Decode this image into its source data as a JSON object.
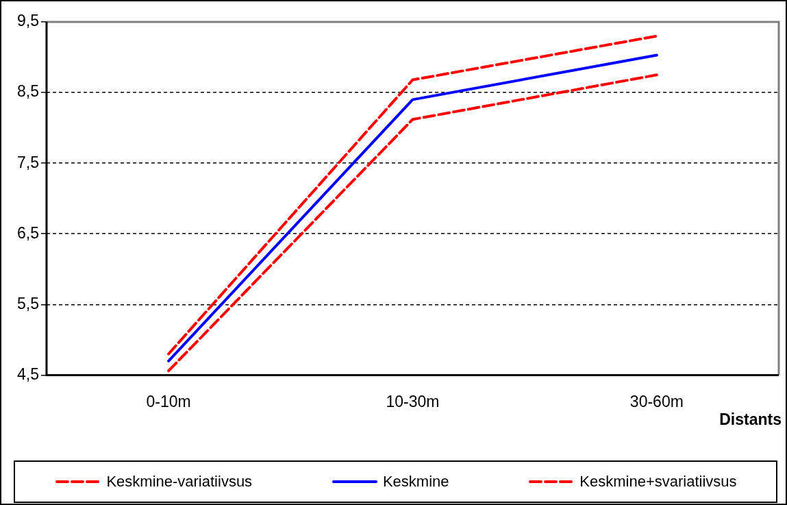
{
  "chart_data": {
    "type": "line",
    "xlabel": "Distants",
    "categories": [
      "0-10m",
      "10-30m",
      "30-60m"
    ],
    "series": [
      {
        "name": "Keskmine-variatiivsus",
        "color": "#ff0000",
        "line_style": "dashed",
        "values": [
          4.56,
          8.12,
          8.75
        ]
      },
      {
        "name": "Keskmine",
        "color": "#0000ff",
        "line_style": "solid",
        "values": [
          4.7,
          8.4,
          9.03
        ]
      },
      {
        "name": "Keskmine+svariatiivsus",
        "color": "#ff0000",
        "line_style": "dashed",
        "values": [
          4.8,
          8.68,
          9.3
        ]
      }
    ],
    "ylim": [
      4.5,
      9.5
    ],
    "yticks": [
      {
        "value": 4.5,
        "label": "4,5"
      },
      {
        "value": 5.5,
        "label": "5,5"
      },
      {
        "value": 6.5,
        "label": "6,5"
      },
      {
        "value": 7.5,
        "label": "7,5"
      },
      {
        "value": 8.5,
        "label": "8,5"
      },
      {
        "value": 9.5,
        "label": "9,5"
      }
    ],
    "grid": "y",
    "legend": "bottom",
    "marker": "none"
  }
}
